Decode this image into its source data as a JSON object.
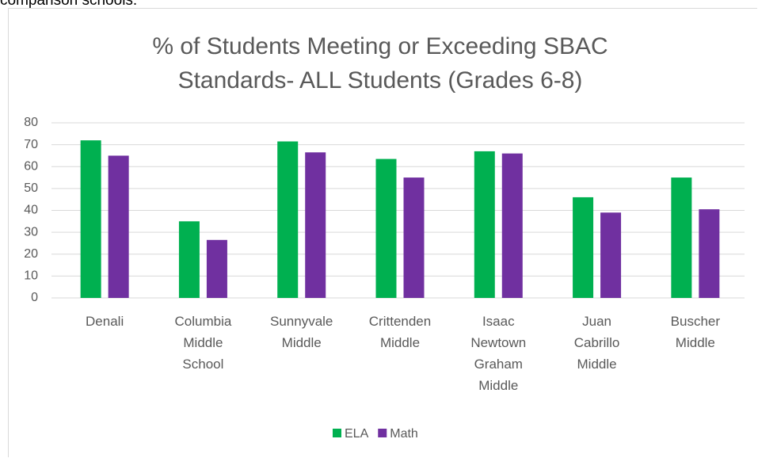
{
  "top_text": "comparison schools.",
  "chart_data": {
    "type": "bar",
    "title": [
      "% of Students Meeting or Exceeding SBAC",
      "Standards- ALL Students (Grades 6-8)"
    ],
    "categories": [
      "Denali",
      "Columbia Middle School",
      "Sunnyvale Middle",
      "Crittenden Middle",
      "Isaac Newtown Graham Middle",
      "Juan Cabrillo Middle",
      "Buscher Middle"
    ],
    "series": [
      {
        "name": "ELA",
        "color": "#00b050",
        "values": [
          72,
          35,
          71.5,
          63.5,
          67,
          46,
          55
        ]
      },
      {
        "name": "Math",
        "color": "#7030a0",
        "values": [
          65,
          26.5,
          66.5,
          55,
          66,
          39,
          40.5
        ]
      }
    ],
    "ylim": [
      0,
      80
    ],
    "yticks": [
      0,
      10,
      20,
      30,
      40,
      50,
      60,
      70,
      80
    ],
    "grid": true,
    "legend": "bottom"
  }
}
